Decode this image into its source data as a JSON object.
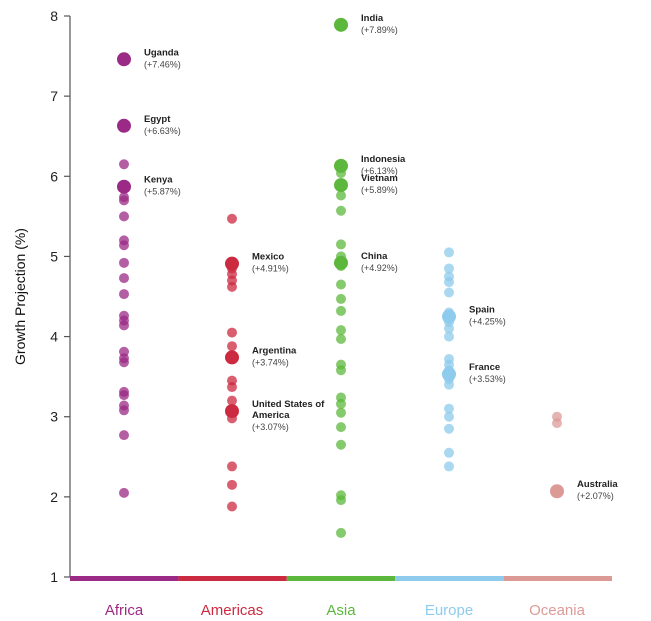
{
  "chart_data": {
    "type": "scatter",
    "title": "",
    "xlabel": "",
    "ylabel": "Growth Projection (%)",
    "ylim": [
      1,
      8
    ],
    "yticks": [
      "1",
      "2",
      "3",
      "4",
      "5",
      "6",
      "7",
      "8"
    ],
    "grid": false,
    "categories": [
      "Africa",
      "Americas",
      "Asia",
      "Europe",
      "Oceania"
    ],
    "colors": {
      "Africa": "#9b2a86",
      "Americas": "#cc2a40",
      "Asia": "#5cb83c",
      "Europe": "#8ecbec",
      "Oceania": "#dc9a97"
    },
    "series": [
      {
        "name": "Africa",
        "values": [
          2.05,
          2.77,
          3.08,
          3.14,
          3.27,
          3.31,
          3.68,
          3.73,
          3.81,
          4.14,
          4.2,
          4.26,
          4.53,
          4.73,
          4.92,
          5.14,
          5.2,
          5.5,
          5.7,
          5.74,
          5.87,
          6.15,
          6.63,
          7.46
        ]
      },
      {
        "name": "Americas",
        "values": [
          1.88,
          2.15,
          2.38,
          2.98,
          3.07,
          3.2,
          3.37,
          3.45,
          3.74,
          3.88,
          4.05,
          4.62,
          4.7,
          4.78,
          4.85,
          4.91,
          5.47
        ]
      },
      {
        "name": "Asia",
        "values": [
          1.55,
          1.96,
          2.02,
          2.65,
          2.87,
          3.05,
          3.16,
          3.24,
          3.58,
          3.65,
          3.97,
          4.08,
          4.32,
          4.47,
          4.65,
          4.88,
          4.92,
          5.0,
          5.15,
          5.57,
          5.76,
          5.89,
          6.04,
          6.13,
          7.89
        ]
      },
      {
        "name": "Europe",
        "values": [
          2.38,
          2.55,
          2.85,
          3.0,
          3.1,
          3.4,
          3.47,
          3.53,
          3.58,
          3.65,
          3.72,
          4.0,
          4.1,
          4.18,
          4.25,
          4.3,
          4.55,
          4.68,
          4.75,
          4.85,
          5.05
        ]
      },
      {
        "name": "Oceania",
        "values": [
          2.07,
          2.92,
          3.0
        ]
      }
    ],
    "annotations": [
      {
        "name": "Uganda",
        "value_label": "(+7.46%)",
        "category": "Africa",
        "value": 7.46
      },
      {
        "name": "Egypt",
        "value_label": "(+6.63%)",
        "category": "Africa",
        "value": 6.63
      },
      {
        "name": "Kenya",
        "value_label": "(+5.87%)",
        "category": "Africa",
        "value": 5.87
      },
      {
        "name": "Mexico",
        "value_label": "(+4.91%)",
        "category": "Americas",
        "value": 4.91
      },
      {
        "name": "Argentina",
        "value_label": "(+3.74%)",
        "category": "Americas",
        "value": 3.74
      },
      {
        "name": "United States of America",
        "value_label": "(+3.07%)",
        "category": "Americas",
        "value": 3.07
      },
      {
        "name": "India",
        "value_label": "(+7.89%)",
        "category": "Asia",
        "value": 7.89
      },
      {
        "name": "Indonesia",
        "value_label": "(+6.13%)",
        "category": "Asia",
        "value": 6.13
      },
      {
        "name": "Vietnam",
        "value_label": "(+5.89%)",
        "category": "Asia",
        "value": 5.89
      },
      {
        "name": "China",
        "value_label": "(+4.92%)",
        "category": "Asia",
        "value": 4.92
      },
      {
        "name": "Spain",
        "value_label": "(+4.25%)",
        "category": "Europe",
        "value": 4.25
      },
      {
        "name": "France",
        "value_label": "(+3.53%)",
        "category": "Europe",
        "value": 3.53
      },
      {
        "name": "Australia",
        "value_label": "(+2.07%)",
        "category": "Oceania",
        "value": 2.07
      }
    ]
  }
}
